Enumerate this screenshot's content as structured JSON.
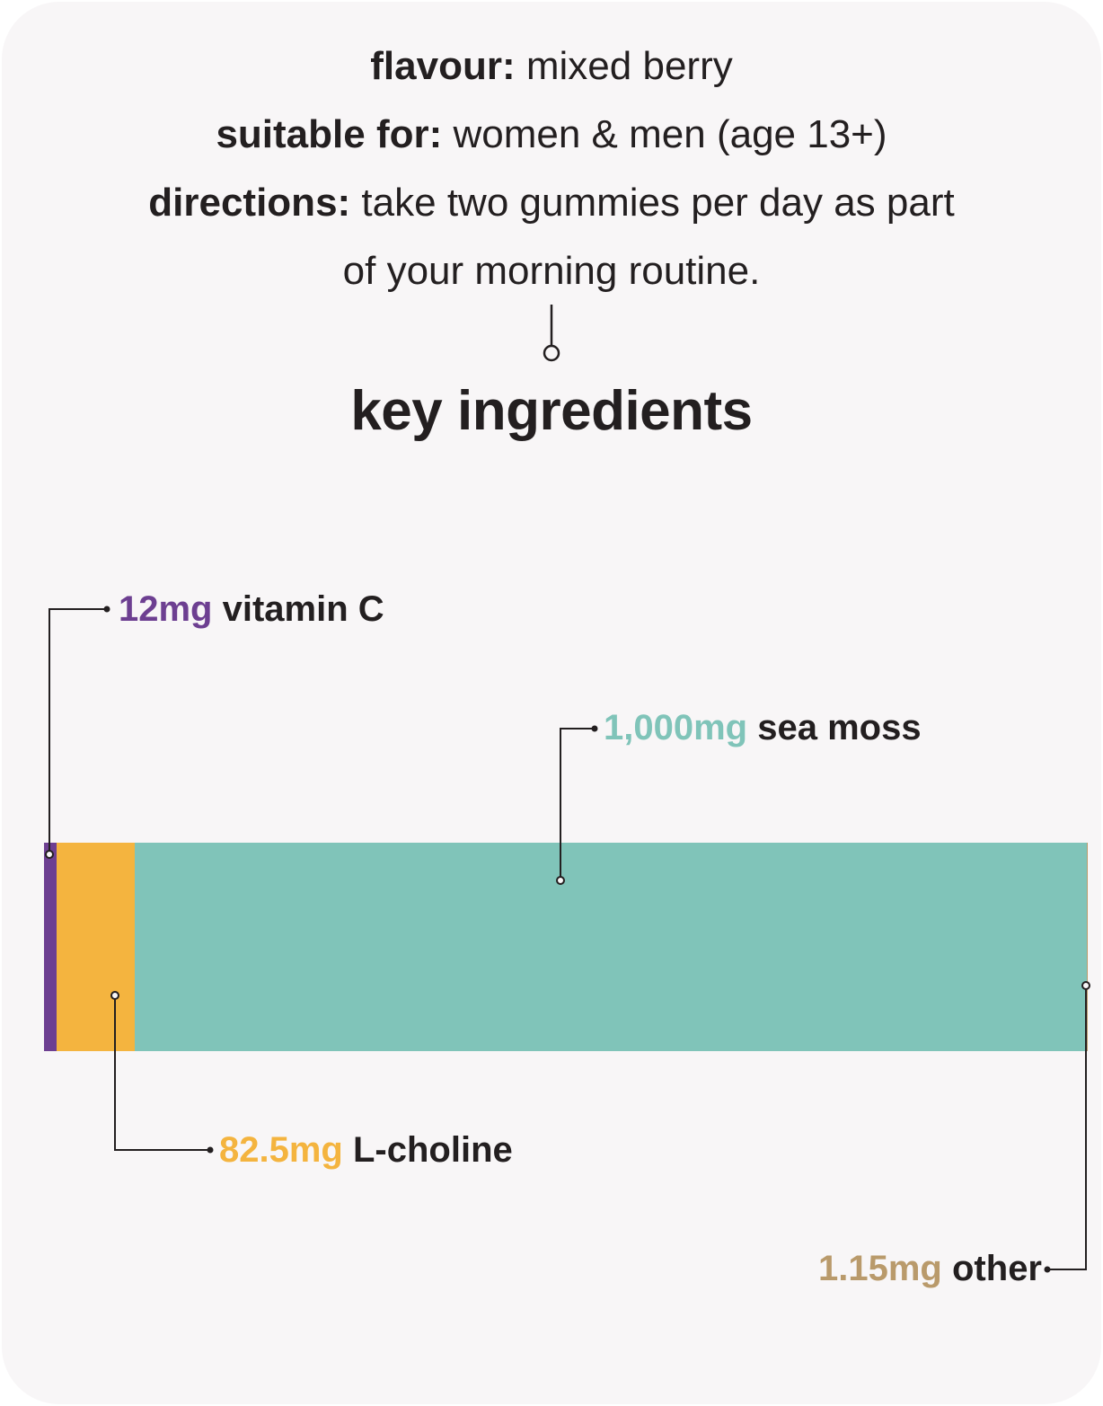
{
  "info": {
    "flavour_label": "flavour:",
    "flavour_value": "mixed berry",
    "suitable_label": "suitable for:",
    "suitable_value": "women & men (age 13+)",
    "directions_label": "directions:",
    "directions_value_1": "take two gummies per day as part",
    "directions_value_2": "of your morning routine."
  },
  "heading": "key ingredients",
  "chart_data": {
    "type": "bar",
    "orientation": "horizontal-stacked",
    "series": [
      {
        "amount": "12mg",
        "name": "vitamin C",
        "value": 12,
        "color": "#6d3f91"
      },
      {
        "amount": "82.5mg",
        "name": "L-choline",
        "value": 82.5,
        "color": "#f4b43f"
      },
      {
        "amount": "1,000mg",
        "name": "sea moss",
        "value": 1000,
        "color": "#80c4b9"
      },
      {
        "amount": "1.15mg",
        "name": "other",
        "value": 1.15,
        "color": "#b99a6b"
      }
    ]
  }
}
